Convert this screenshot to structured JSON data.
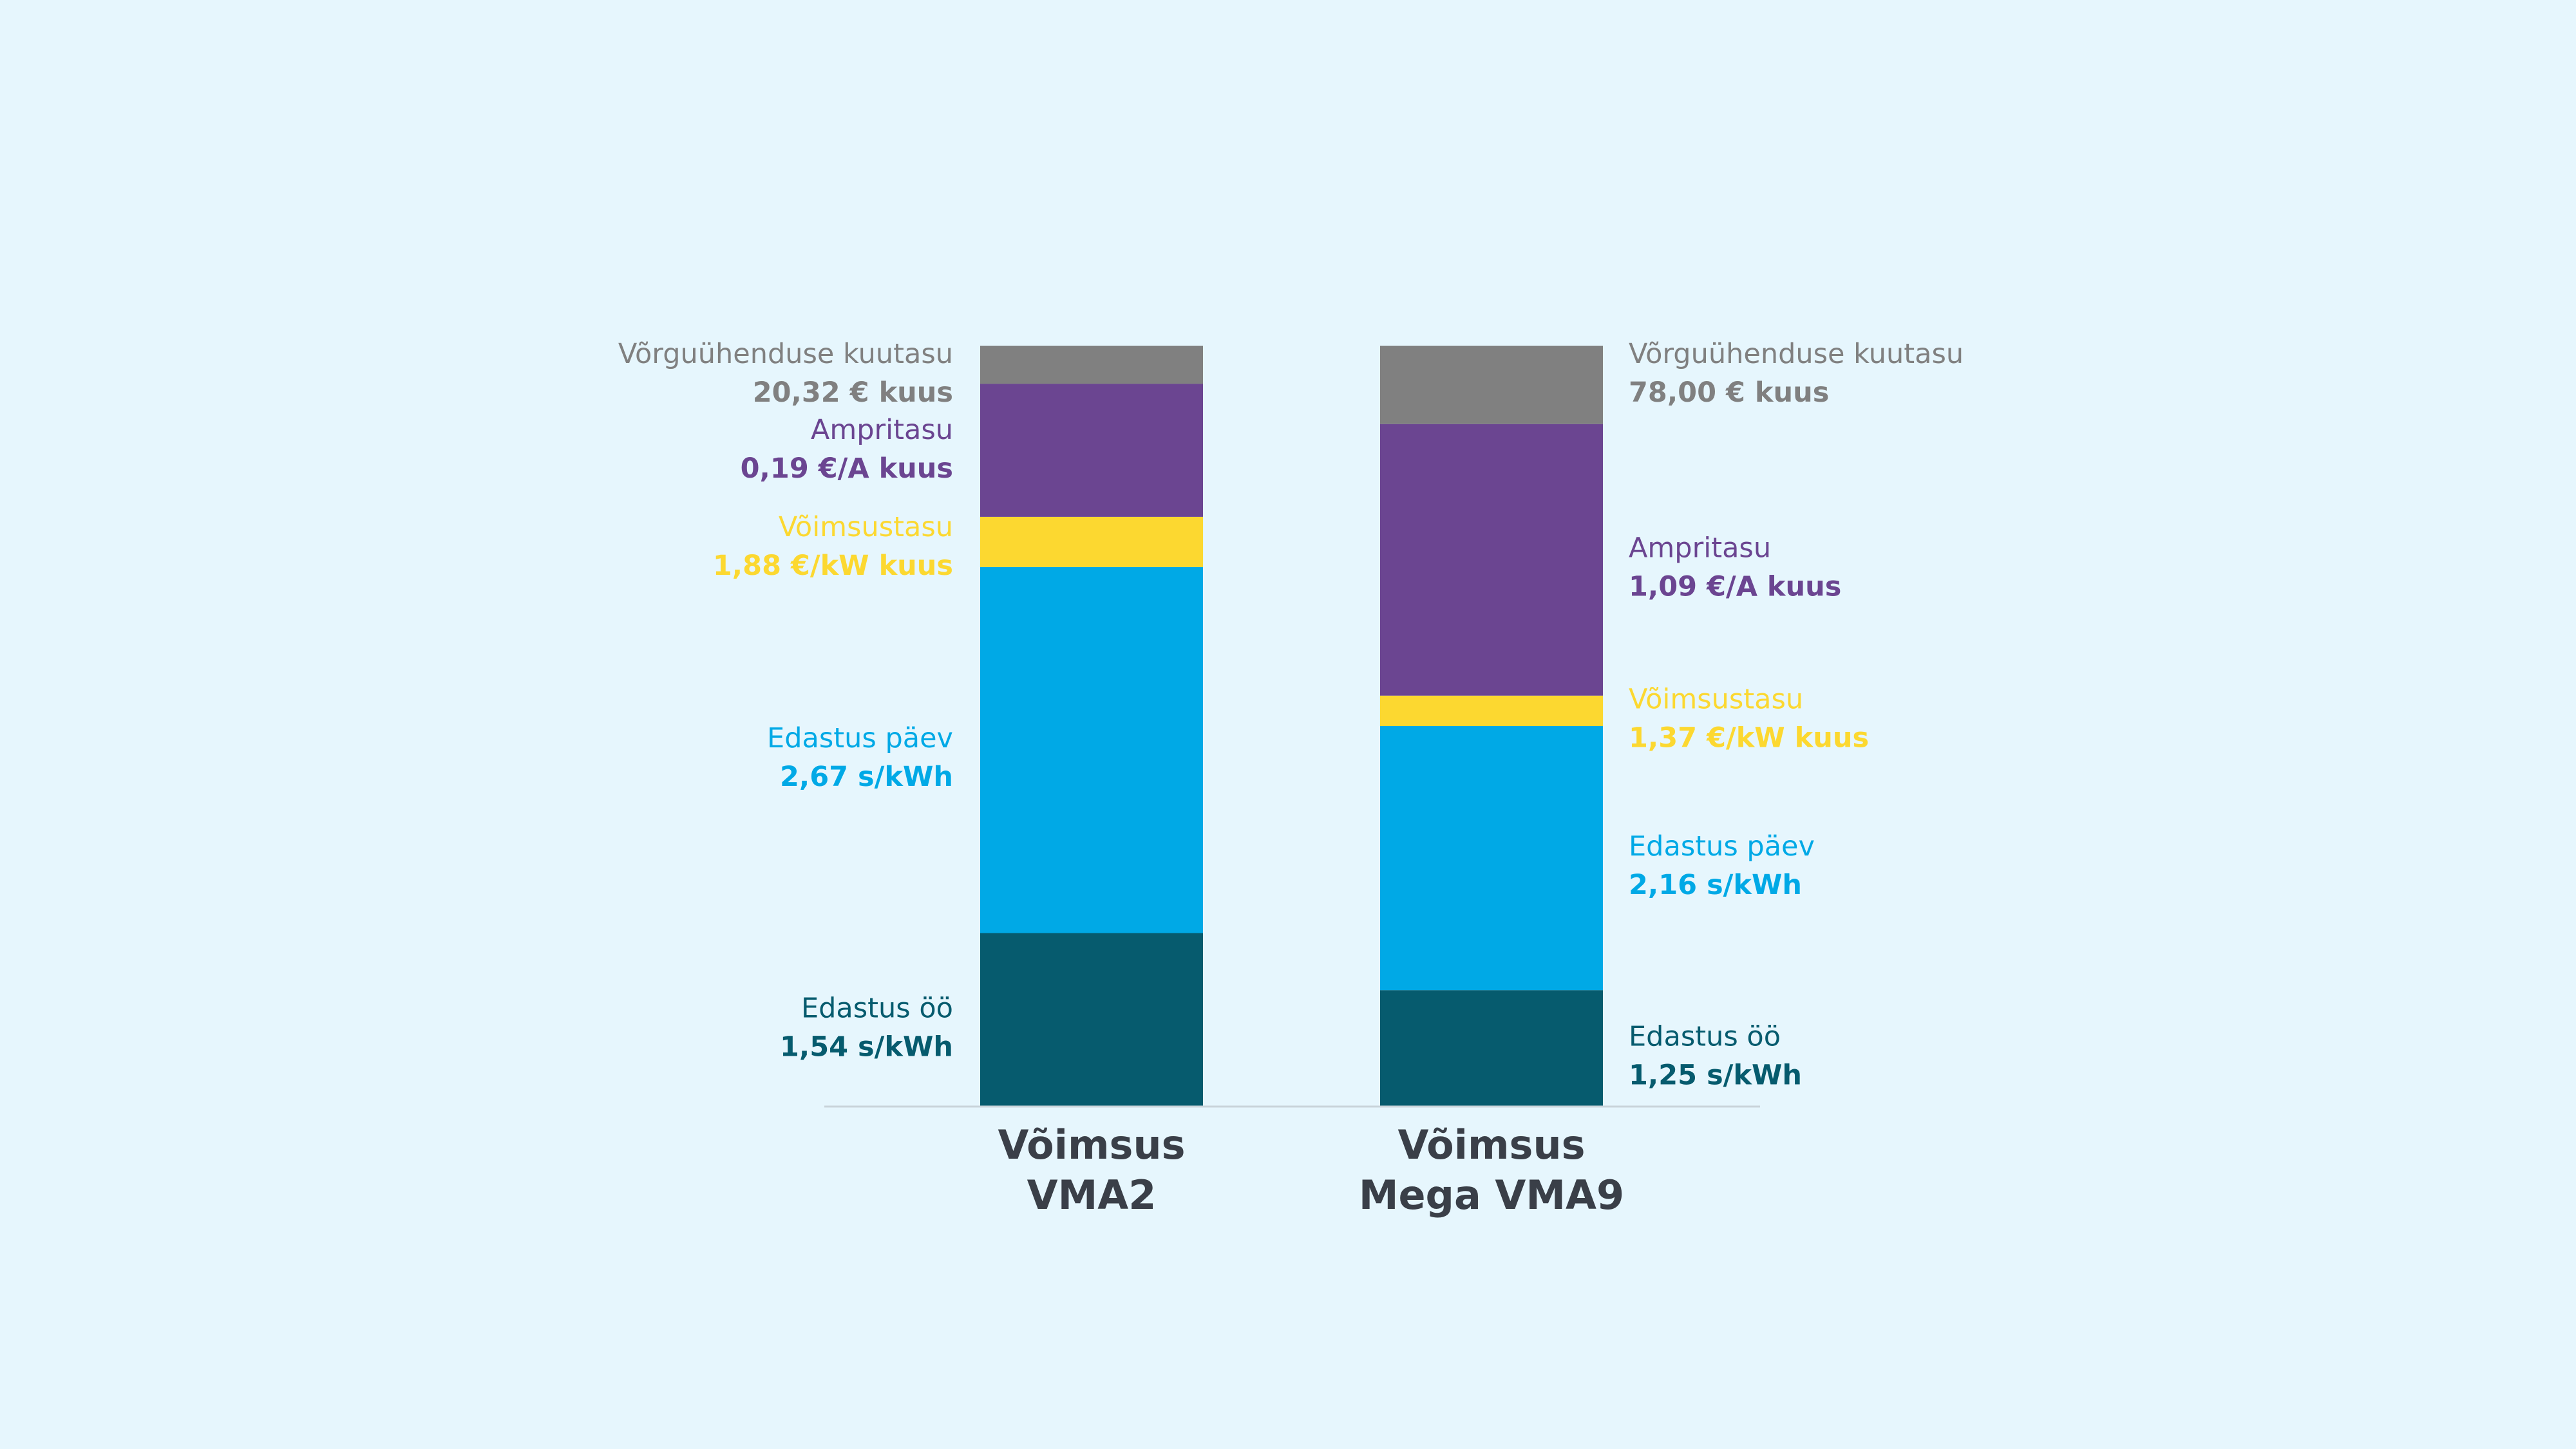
{
  "chart_data": {
    "type": "bar",
    "stacked": true,
    "categories": [
      {
        "line1": "Võimsus",
        "line2": "VMA2"
      },
      {
        "line1": "Võimsus",
        "line2": "Mega VMA9"
      }
    ],
    "series": [
      {
        "key": "night",
        "name": "Edastus öö",
        "color": "#065b6e",
        "labels": [
          "1,54 s/kWh",
          "1,25 s/kWh"
        ],
        "heights": [
          0.228,
          0.153
        ]
      },
      {
        "key": "day",
        "name": "Edastus päev",
        "color": "#00a9e6",
        "labels": [
          "2,67 s/kWh",
          "2,16 s/kWh"
        ],
        "heights": [
          0.481,
          0.347
        ]
      },
      {
        "key": "power",
        "name": "Võimsustasu",
        "color": "#fcd830",
        "labels": [
          "1,88 €/kW kuus",
          "1,37 €/kW kuus"
        ],
        "heights": [
          0.066,
          0.04
        ]
      },
      {
        "key": "amp",
        "name": "Ampritasu",
        "color": "#6b4591",
        "labels": [
          "0,19 €/A kuus",
          "1,09 €/A kuus"
        ],
        "heights": [
          0.175,
          0.357
        ]
      },
      {
        "key": "grid",
        "name": "Võrguühenduse kuutasu",
        "color": "#808080",
        "labels": [
          "20,32 € kuus",
          "78,00 € kuus"
        ],
        "heights": [
          0.05,
          0.103
        ]
      }
    ],
    "total_height": 1.0,
    "grid": false,
    "legend": "inline-labels"
  },
  "colors": {
    "background": "#e6f6fd",
    "baseline": "#c9d4da",
    "category_text": "#3a3f48"
  }
}
